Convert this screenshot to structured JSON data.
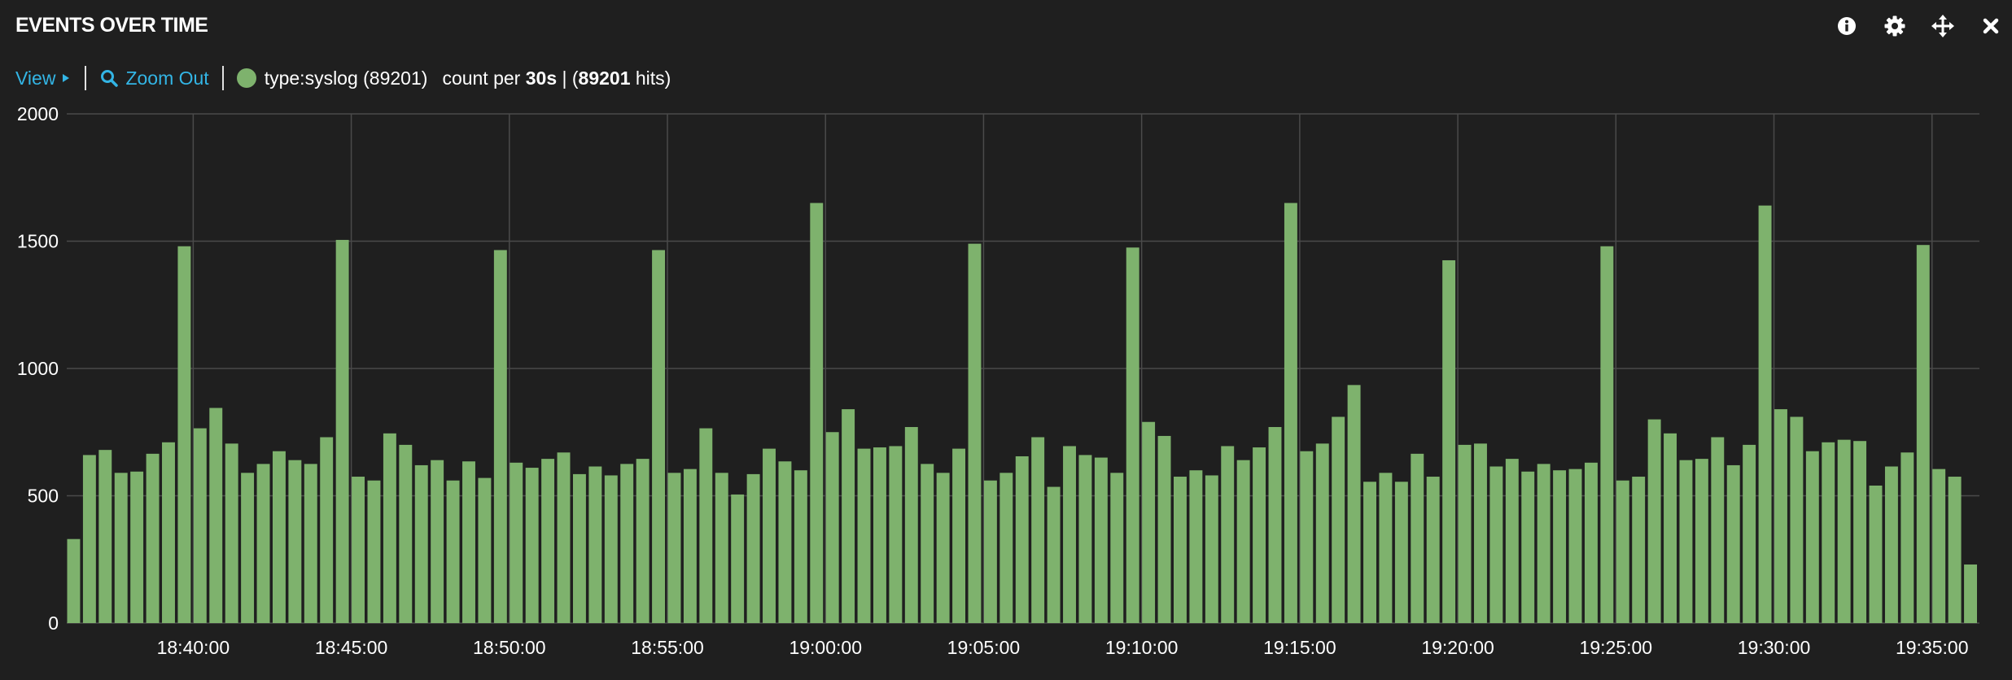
{
  "header": {
    "title": "EVENTS OVER TIME",
    "icons": [
      "info-icon",
      "gear-icon",
      "move-icon",
      "close-icon"
    ]
  },
  "toolbar": {
    "view_label": "View",
    "zoom_out_label": "Zoom Out",
    "legend_label": "type:syslog (89201)",
    "count_per_prefix": "count per",
    "interval": "30s",
    "hits_sep": " | (",
    "hits": "89201",
    "hits_suffix": " hits)"
  },
  "colors": {
    "accent": "#33b5e5",
    "series": "#7eb26d",
    "background": "#1f1f1f",
    "grid": "#4a4a4a"
  },
  "chart_data": {
    "type": "bar",
    "series": [
      {
        "name": "type:syslog (89201)",
        "values": [
          330,
          660,
          680,
          590,
          595,
          665,
          710,
          1480,
          765,
          845,
          705,
          590,
          625,
          675,
          640,
          625,
          730,
          1505,
          575,
          560,
          745,
          700,
          620,
          640,
          560,
          635,
          570,
          1465,
          630,
          610,
          645,
          670,
          585,
          615,
          580,
          625,
          645,
          1465,
          590,
          605,
          765,
          590,
          505,
          585,
          685,
          635,
          600,
          1650,
          750,
          840,
          685,
          690,
          695,
          770,
          625,
          590,
          685,
          1490,
          560,
          590,
          655,
          730,
          535,
          695,
          660,
          650,
          590,
          1475,
          790,
          735,
          575,
          600,
          580,
          695,
          640,
          690,
          770,
          1650,
          675,
          705,
          810,
          935,
          555,
          590,
          555,
          665,
          575,
          1425,
          700,
          705,
          615,
          645,
          595,
          625,
          600,
          605,
          630,
          1480,
          560,
          575,
          800,
          745,
          640,
          645,
          730,
          620,
          700,
          1640,
          840,
          810,
          675,
          710,
          720,
          715,
          540,
          615,
          670,
          1485,
          605,
          575,
          230
        ]
      }
    ],
    "bucket_seconds": 30,
    "first_bucket": "18:36:00",
    "ylim": [
      0,
      2000
    ],
    "yticks": [
      0,
      500,
      1000,
      1500,
      2000
    ],
    "xticks": [
      "18:40:00",
      "18:45:00",
      "18:50:00",
      "18:55:00",
      "19:00:00",
      "19:05:00",
      "19:10:00",
      "19:15:00",
      "19:20:00",
      "19:25:00",
      "19:30:00",
      "19:35:00"
    ],
    "grid": true,
    "legend": "top-left"
  }
}
